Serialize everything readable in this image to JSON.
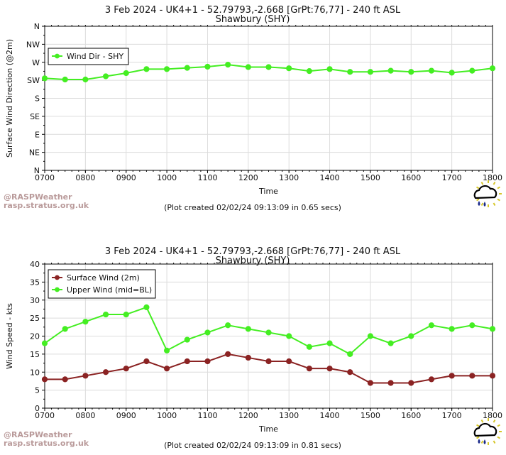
{
  "charts": [
    {
      "title_line1": "3 Feb 2024 - UK4+1 - 52.79793,-2.668 [GrPt:76,77]  - 240 ft ASL",
      "title_line2": "Shawbury (SHY)",
      "ylabel": "Surface Wind Direction (@2m)",
      "xlabel": "Time",
      "footer": "(Plot created 02/02/24 09:13:09 in 0.65 secs)",
      "watermark_line1": "@RASPWeather",
      "watermark_line2": "rasp.stratus.org.uk",
      "logo_icon": "raincloud-sun-logo-icon"
    },
    {
      "title_line1": "3 Feb 2024 - UK4+1 - 52.79793,-2.668 [GrPt:76,77]  - 240 ft ASL",
      "title_line2": "Shawbury (SHY)",
      "ylabel": "Wind Speed - kts",
      "xlabel": "Time",
      "footer": "(Plot created 02/02/24 09:13:09 in 0.81 secs)",
      "watermark_line1": "@RASPWeather",
      "watermark_line2": "rasp.stratus.org.uk",
      "logo_icon": "raincloud-sun-logo-icon"
    }
  ],
  "chart_data": [
    {
      "type": "line",
      "x_ticks": [
        "0700",
        "0800",
        "0900",
        "1000",
        "1100",
        "1200",
        "1300",
        "1400",
        "1500",
        "1600",
        "1700",
        "1800"
      ],
      "x": [
        7.0,
        7.5,
        8.0,
        8.5,
        9.0,
        9.5,
        10.0,
        10.5,
        11.0,
        11.5,
        12.0,
        12.5,
        13.0,
        13.5,
        14.0,
        14.5,
        15.0,
        15.5,
        16.0,
        16.5,
        17.0,
        17.5,
        18.0
      ],
      "xlim": [
        7,
        18
      ],
      "y_ticks": [
        "N",
        "NW",
        "W",
        "SW",
        "S",
        "SE",
        "E",
        "NE",
        "N"
      ],
      "y_tick_values": [
        360,
        315,
        270,
        225,
        180,
        135,
        90,
        45,
        0
      ],
      "ylim": [
        0,
        360
      ],
      "grid": true,
      "legend_position": "top-left",
      "series": [
        {
          "name": "Wind Dir - SHY",
          "color": "#44ee22",
          "values": [
            230,
            227,
            227,
            235,
            243,
            253,
            253,
            256,
            259,
            264,
            258,
            258,
            255,
            248,
            253,
            246,
            246,
            249,
            246,
            249,
            244,
            249,
            255
          ]
        }
      ]
    },
    {
      "type": "line",
      "x_ticks": [
        "0700",
        "0800",
        "0900",
        "1000",
        "1100",
        "1200",
        "1300",
        "1400",
        "1500",
        "1600",
        "1700",
        "1800"
      ],
      "x": [
        7.0,
        7.5,
        8.0,
        8.5,
        9.0,
        9.5,
        10.0,
        10.5,
        11.0,
        11.5,
        12.0,
        12.5,
        13.0,
        13.5,
        14.0,
        14.5,
        15.0,
        15.5,
        16.0,
        16.5,
        17.0,
        17.5,
        18.0
      ],
      "xlim": [
        7,
        18
      ],
      "y_ticks": [
        "0",
        "5",
        "10",
        "15",
        "20",
        "25",
        "30",
        "35",
        "40"
      ],
      "y_tick_values": [
        0,
        5,
        10,
        15,
        20,
        25,
        30,
        35,
        40
      ],
      "ylim": [
        0,
        40
      ],
      "grid": true,
      "legend_position": "top-left",
      "series": [
        {
          "name": "Surface Wind (2m)",
          "color": "#8b2323",
          "values": [
            8,
            8,
            9,
            10,
            11,
            13,
            11,
            13,
            13,
            15,
            14,
            13,
            13,
            11,
            11,
            10,
            7,
            7,
            7,
            8,
            9,
            9,
            9
          ]
        },
        {
          "name": "Upper Wind (mid=BL)",
          "color": "#44ee22",
          "values": [
            18,
            22,
            24,
            26,
            26,
            28,
            16,
            19,
            21,
            23,
            22,
            21,
            20,
            17,
            18,
            15,
            20,
            18,
            20,
            23,
            22,
            23,
            22
          ]
        }
      ]
    }
  ]
}
